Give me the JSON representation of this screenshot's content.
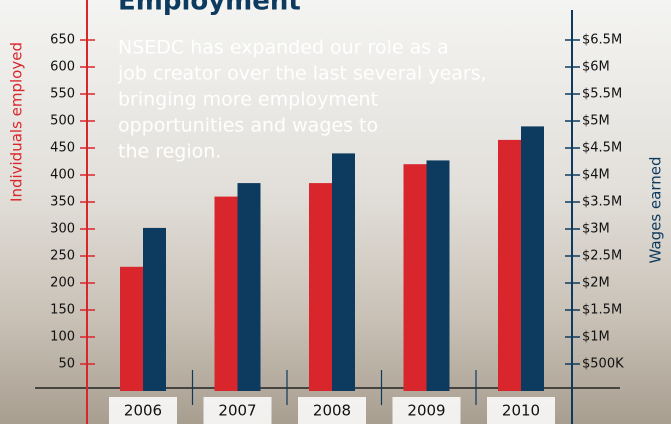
{
  "chart_data": {
    "type": "bar",
    "title": "Employment",
    "annotation": [
      "NSEDC has expanded our role as a",
      "job creator over the last several years,",
      "bringing more employment",
      "opportunities and wages to",
      "the region."
    ],
    "categories": [
      "2006",
      "2007",
      "2008",
      "2009",
      "2010"
    ],
    "y_label": "Individuals employed",
    "y2_label": "Wages earned",
    "ylim": [
      0,
      650
    ],
    "yticks": [
      50,
      100,
      150,
      200,
      250,
      300,
      350,
      400,
      450,
      500,
      550,
      600,
      650
    ],
    "y2lim": [
      0,
      6500000
    ],
    "y2ticks": [
      {
        "value": 500000,
        "label": "$500K"
      },
      {
        "value": 1000000,
        "label": "$1M"
      },
      {
        "value": 1500000,
        "label": "$1.5M"
      },
      {
        "value": 2000000,
        "label": "$2M"
      },
      {
        "value": 2500000,
        "label": "$2.5M"
      },
      {
        "value": 3000000,
        "label": "$3M"
      },
      {
        "value": 3500000,
        "label": "$3.5M"
      },
      {
        "value": 4000000,
        "label": "$4M"
      },
      {
        "value": 4500000,
        "label": "$4.5M"
      },
      {
        "value": 5000000,
        "label": "$5M"
      },
      {
        "value": 5500000,
        "label": "$5.5M"
      },
      {
        "value": 6000000,
        "label": "$6M"
      },
      {
        "value": 6500000,
        "label": "$6.5M"
      }
    ],
    "series": [
      {
        "name": "Individuals employed",
        "color": "#d9252c",
        "values": [
          230,
          360,
          385,
          420,
          465
        ]
      },
      {
        "name": "Wages earned",
        "color": "#0d3a5f",
        "axis": "y2",
        "values": [
          3020000,
          3850000,
          4400000,
          4270000,
          4900000
        ]
      }
    ]
  }
}
